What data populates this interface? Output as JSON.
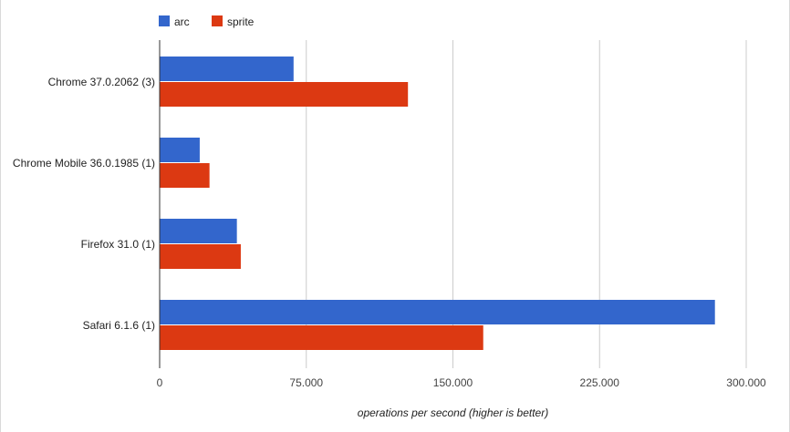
{
  "chart_data": {
    "type": "bar",
    "orientation": "horizontal",
    "categories": [
      "Chrome 37.0.2062 (3)",
      "Chrome Mobile 36.0.1985 (1)",
      "Firefox 31.0 (1)",
      "Safari 6.1.6 (1)"
    ],
    "series": [
      {
        "name": "arc",
        "color": "#3366cc",
        "values": [
          68500,
          20500,
          39500,
          284000
        ]
      },
      {
        "name": "sprite",
        "color": "#dc3912",
        "values": [
          127000,
          25500,
          41500,
          165500
        ]
      }
    ],
    "xlabel": "operations per second (higher is better)",
    "ylabel": "",
    "xlim": [
      0,
      300000
    ],
    "xticks": [
      0,
      75000,
      150000,
      225000,
      300000
    ],
    "xtick_labels": [
      "0",
      "75.000",
      "150.000",
      "225.000",
      "300.000"
    ],
    "grid": true,
    "legend_position": "top-left"
  }
}
